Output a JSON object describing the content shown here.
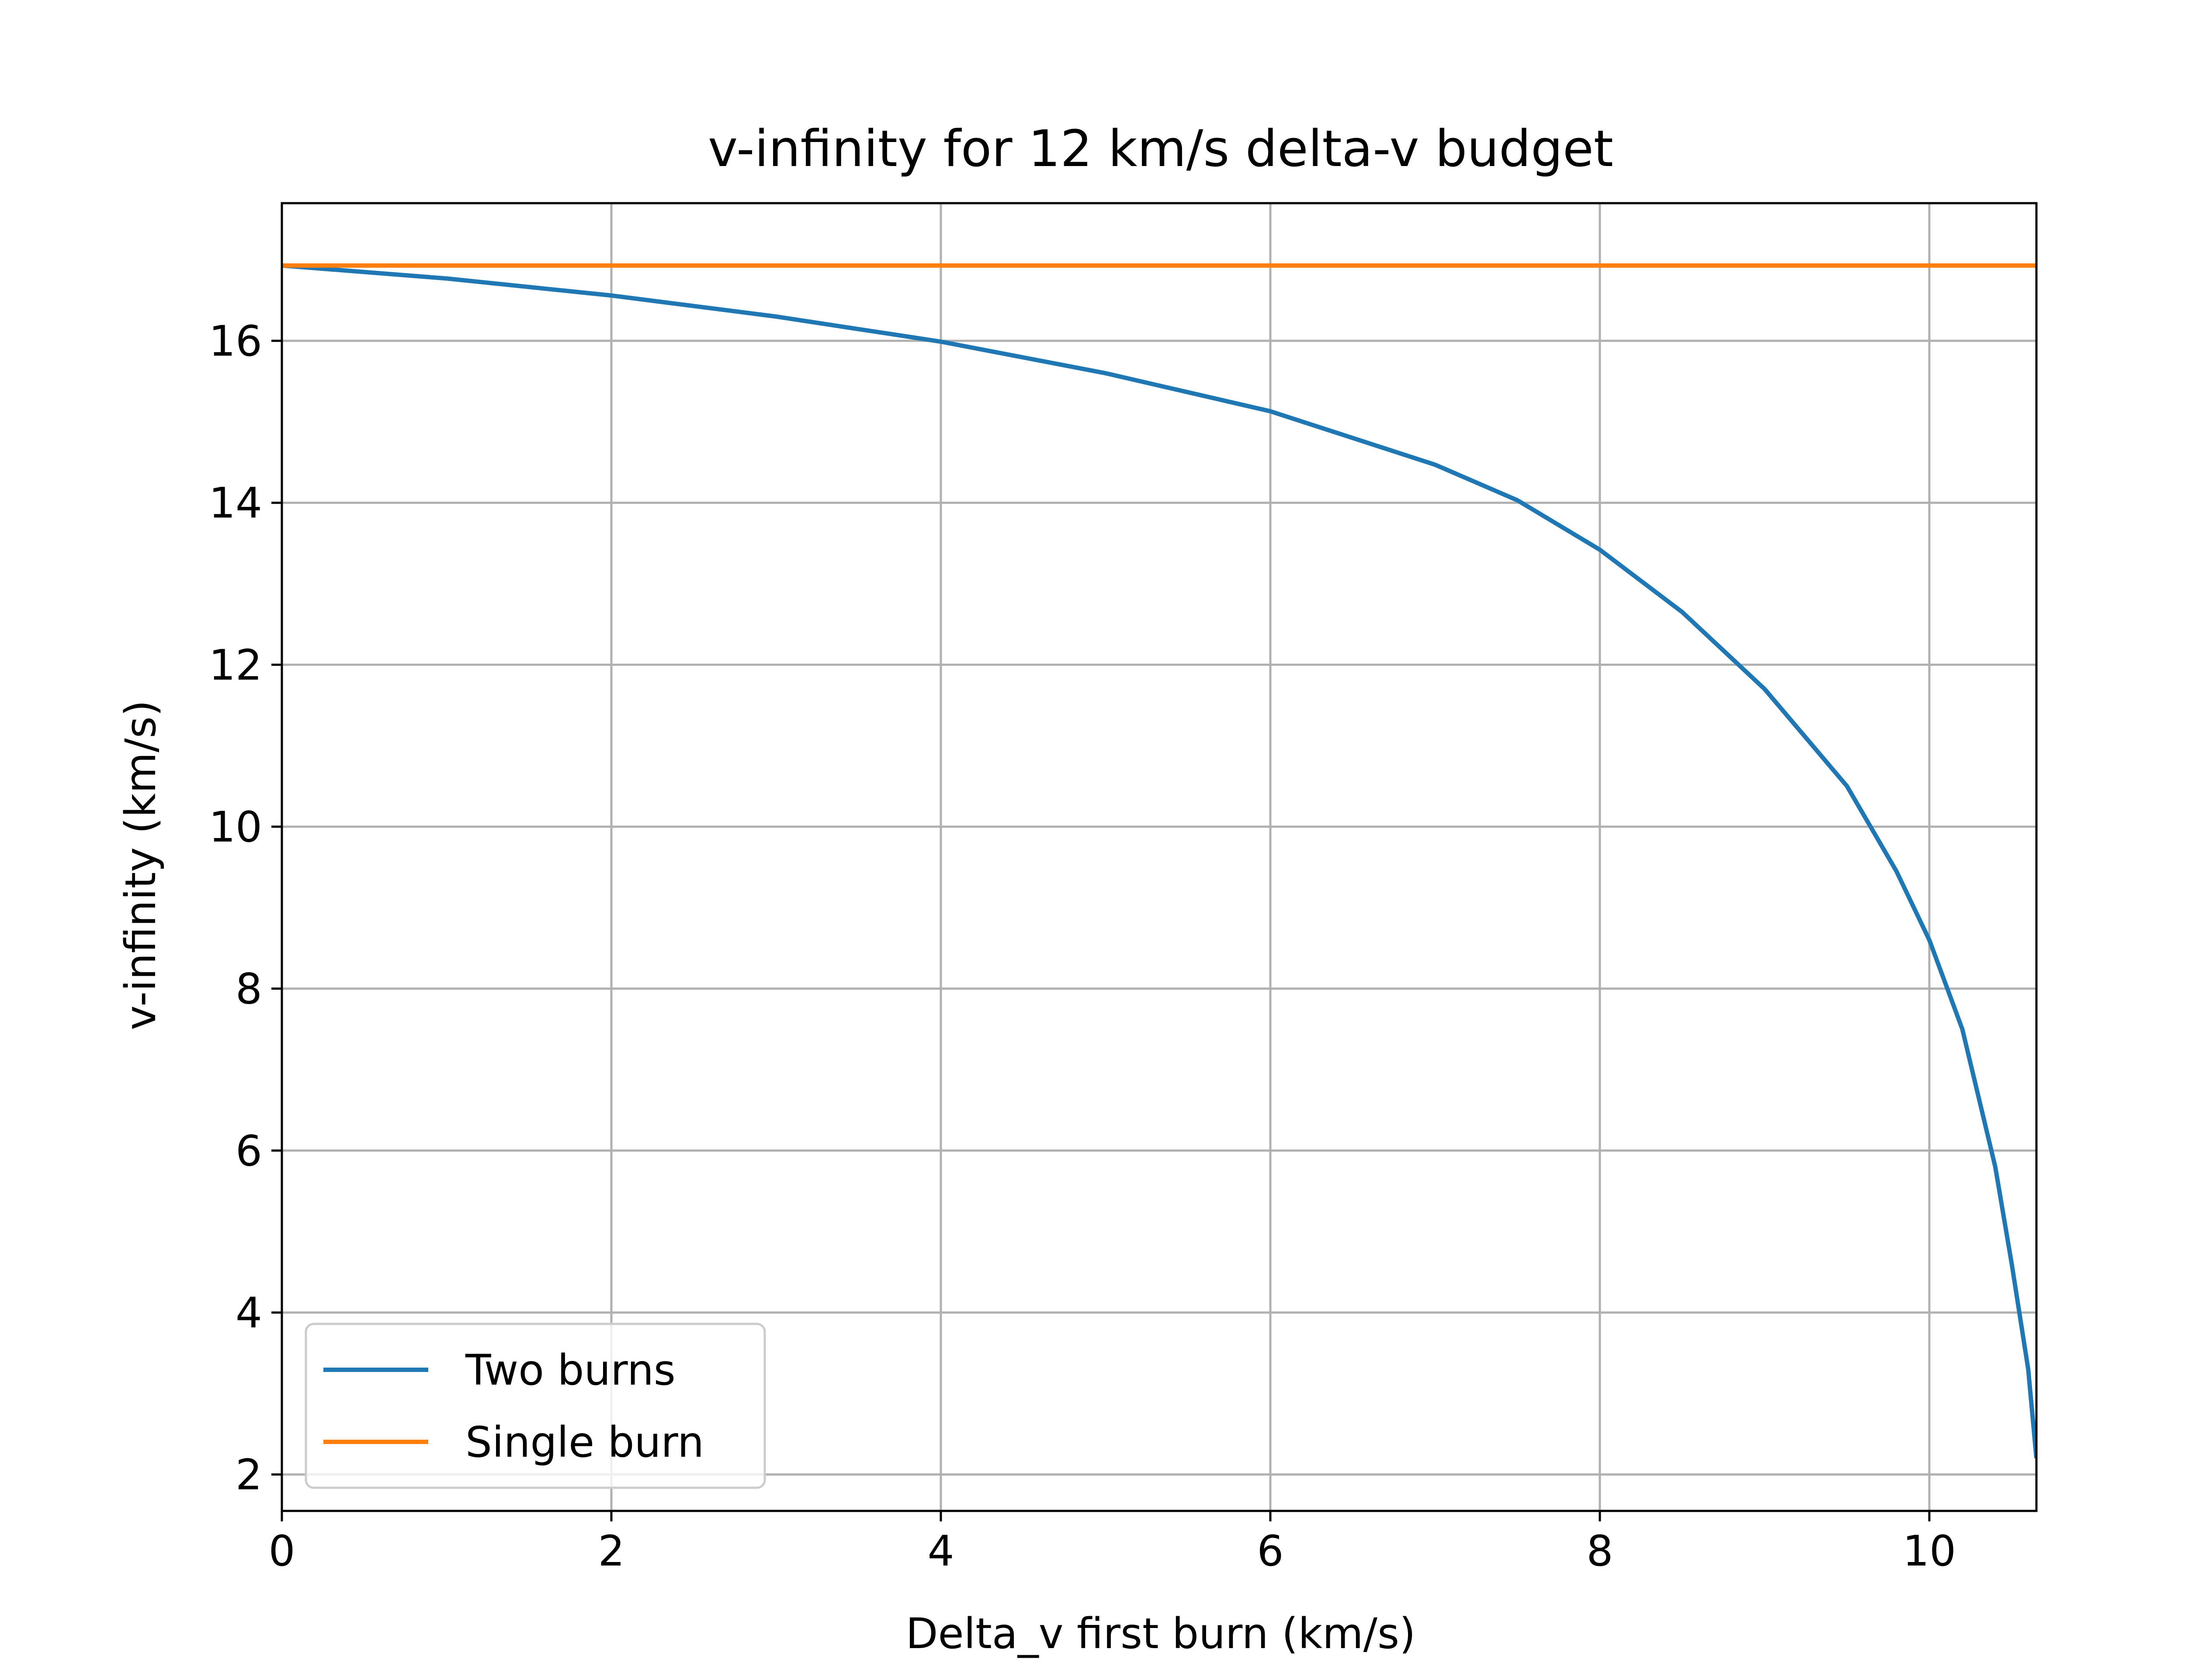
{
  "chart_data": {
    "type": "line",
    "title": "v-infinity for 12 km/s delta-v budget",
    "xlabel": "Delta_v first burn (km/s)",
    "ylabel": "v-infinity (km/s)",
    "xlim": [
      0,
      10.65
    ],
    "ylim": [
      1.55,
      17.7
    ],
    "xticks": [
      0,
      2,
      4,
      6,
      8,
      10
    ],
    "yticks": [
      2,
      4,
      6,
      8,
      10,
      12,
      14,
      16
    ],
    "grid": true,
    "legend_position": "lower-left",
    "series": [
      {
        "name": "Two burns",
        "color": "#1f77b4",
        "x": [
          0,
          1,
          2,
          3,
          4,
          5,
          6,
          7,
          7.5,
          8,
          8.5,
          9,
          9.5,
          9.8,
          10,
          10.2,
          10.4,
          10.5,
          10.6,
          10.65
        ],
        "y": [
          16.93,
          16.77,
          16.56,
          16.3,
          15.99,
          15.6,
          15.13,
          14.47,
          14.03,
          13.42,
          12.65,
          11.7,
          10.5,
          9.45,
          8.6,
          7.5,
          5.8,
          4.6,
          3.3,
          2.2
        ]
      },
      {
        "name": "Single burn",
        "color": "#ff7f0e",
        "x": [
          0,
          10.65
        ],
        "y": [
          16.93,
          16.93
        ]
      }
    ]
  }
}
